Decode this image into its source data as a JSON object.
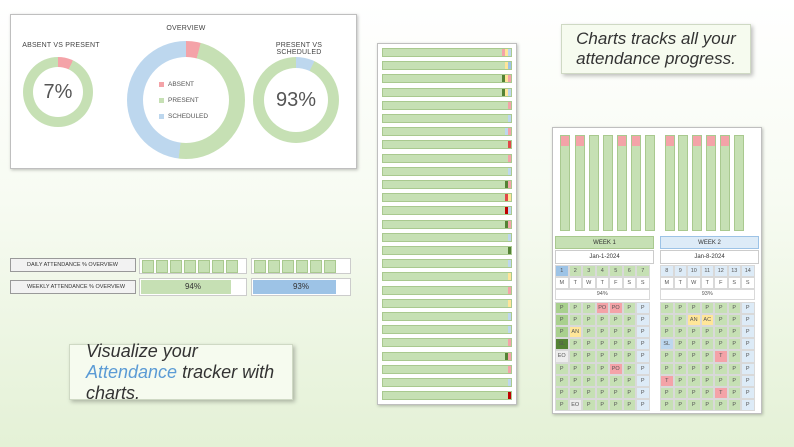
{
  "overview": {
    "absent_vs_present_title": "ABSENT VS PRESENT",
    "overview_title": "OVERVIEW",
    "present_vs_scheduled_title": "PRESENT VS SCHEDULED",
    "absent_pct": "7%",
    "present_pct": "93%",
    "legend": [
      {
        "label": "ABSENT",
        "color": "#f4a3a8"
      },
      {
        "label": "PRESENT",
        "color": "#c6e0b4"
      },
      {
        "label": "SCHEDULED",
        "color": "#bdd7ee"
      }
    ],
    "absent_fraction": 0.07,
    "overview_fractions": {
      "absent": 0.04,
      "present": 0.48,
      "scheduled": 0.48
    },
    "present_vs_scheduled_fraction": 0.93
  },
  "callouts": {
    "top_right": "Charts tracks all your attendance progress.",
    "bottom_left_pre": "Visualize your ",
    "bottom_left_accent": "Attendance",
    "bottom_left_post": " tracker with charts."
  },
  "summary": {
    "daily_label": "DAILY ATTENDANCE % OVERVIEW",
    "weekly_label": "WEEKLY ATTENDANCE % OVERVIEW",
    "week1_pct": "94%",
    "week2_pct": "93%",
    "week1_fraction": 0.94,
    "week2_fraction": 0.93
  },
  "calendar": {
    "week1_label": "WEEK 1",
    "week2_label": "WEEK 2",
    "week1_date": "Jan-1-2024",
    "week2_date": "Jan-8-2024",
    "week1_days": [
      "1",
      "2",
      "3",
      "4",
      "5",
      "6",
      "7"
    ],
    "week2_days": [
      "8",
      "9",
      "10",
      "11",
      "12",
      "13",
      "14"
    ],
    "weekday_letters": [
      "M",
      "T",
      "W",
      "T",
      "F",
      "S",
      "S"
    ],
    "week1_pct": "94%",
    "week2_pct": "93%"
  },
  "colors": {
    "present": "#c6e0b4",
    "absent": "#f4a3a8",
    "scheduled": "#bdd7ee",
    "late": "#ffe699",
    "dark": "#548235"
  }
}
